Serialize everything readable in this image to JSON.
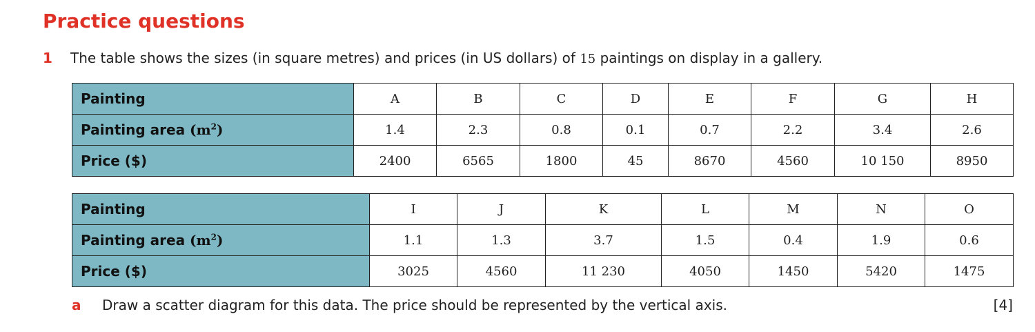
{
  "heading": "Practice questions",
  "question": {
    "number": "1",
    "text_before": "The table shows the sizes (in square metres) and prices (in US dollars) of ",
    "count": "15",
    "text_after": " paintings on display in a gallery."
  },
  "row_labels": {
    "painting": "Painting",
    "area": "Painting area",
    "area_unit_open": "(m",
    "area_unit_sup": "2",
    "area_unit_close": ")",
    "price": "Price ($)"
  },
  "table1": {
    "paintings": [
      "A",
      "B",
      "C",
      "D",
      "E",
      "F",
      "G",
      "H"
    ],
    "areas": [
      "1.4",
      "2.3",
      "0.8",
      "0.1",
      "0.7",
      "2.2",
      "3.4",
      "2.6"
    ],
    "prices": [
      "2400",
      "6565",
      "1800",
      "45",
      "8670",
      "4560",
      "10 150",
      "8950"
    ]
  },
  "table2": {
    "paintings": [
      "I",
      "J",
      "K",
      "L",
      "M",
      "N",
      "O"
    ],
    "areas": [
      "1.1",
      "1.3",
      "3.7",
      "1.5",
      "0.4",
      "1.9",
      "0.6"
    ],
    "prices": [
      "3025",
      "4560",
      "11 230",
      "4050",
      "1450",
      "5420",
      "1475"
    ]
  },
  "part_a": {
    "label": "a",
    "text": "Draw a scatter diagram for this data. The price should be represented by the vertical axis.",
    "marks": "[4]"
  }
}
